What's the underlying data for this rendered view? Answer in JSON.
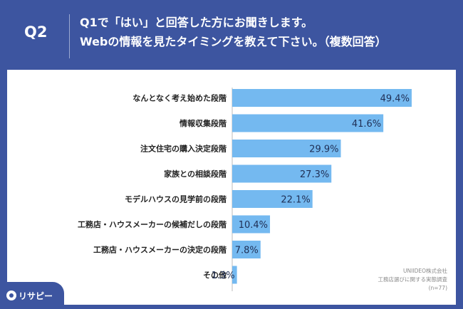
{
  "header": {
    "number": "Q2",
    "line1": "Q1で「はい」と回答した方にお聞きします。",
    "line2": "Webの情報を見たタイミングを教えて下さい。（複数回答）"
  },
  "source": {
    "company": "UNIIDEO株式会社",
    "survey": "工務店選びに関する実態調査",
    "sample": "(n=77)"
  },
  "logo": {
    "text": "リサピー",
    "icon": "logo-circle-icon"
  },
  "colors": {
    "background": "#3d55a0",
    "bar": "#74b9f0",
    "text": "#222222"
  },
  "chart_data": {
    "type": "bar",
    "orientation": "horizontal",
    "categories": [
      "なんとなく考え始めた段階",
      "情報収集段階",
      "注文住宅の購入決定段階",
      "家族との相談段階",
      "モデルハウスの見学前の段階",
      "工務店・ハウスメーカーの候補だしの段階",
      "工務店・ハウスメーカーの決定の段階",
      "その他"
    ],
    "values": [
      49.4,
      41.6,
      29.9,
      27.3,
      22.1,
      10.4,
      7.8,
      1.3
    ],
    "labels": [
      "49.4%",
      "41.6%",
      "29.9%",
      "27.3%",
      "22.1%",
      "10.4%",
      "7.8%",
      "1.3%"
    ],
    "xlim": [
      0,
      100
    ],
    "grid": false,
    "legend": false
  }
}
